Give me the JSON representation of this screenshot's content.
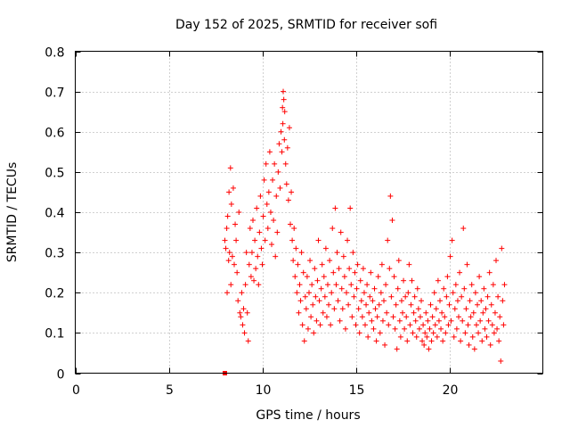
{
  "chart_data": {
    "type": "scatter",
    "title": "Day 152 of 2025, SRMTID for receiver sofi",
    "xlabel": "GPS time / hours",
    "ylabel": "SRMTID / TECUs",
    "xlim": [
      0,
      25
    ],
    "ylim": [
      0,
      0.8
    ],
    "xticks": [
      0,
      5,
      10,
      15,
      20
    ],
    "yticks": [
      0,
      0.1,
      0.2,
      0.3,
      0.4,
      0.5,
      0.6,
      0.7,
      0.8
    ],
    "grid": true,
    "marker_color": "#ff0000",
    "series": [
      {
        "name": "SRMTID",
        "marker": "plus",
        "points": [
          [
            8.0,
            0.33
          ],
          [
            8.05,
            0.31
          ],
          [
            8.1,
            0.36
          ],
          [
            8.12,
            0.2
          ],
          [
            8.15,
            0.39
          ],
          [
            8.2,
            0.28
          ],
          [
            8.22,
            0.45
          ],
          [
            8.25,
            0.3
          ],
          [
            8.3,
            0.51
          ],
          [
            8.32,
            0.22
          ],
          [
            8.35,
            0.42
          ],
          [
            8.4,
            0.29
          ],
          [
            8.45,
            0.46
          ],
          [
            8.5,
            0.27
          ],
          [
            8.55,
            0.37
          ],
          [
            8.6,
            0.33
          ],
          [
            8.65,
            0.25
          ],
          [
            8.7,
            0.18
          ],
          [
            8.75,
            0.4
          ],
          [
            8.8,
            0.15
          ],
          [
            8.85,
            0.14
          ],
          [
            8.9,
            0.2
          ],
          [
            8.95,
            0.12
          ],
          [
            9.0,
            0.16
          ],
          [
            9.05,
            0.1
          ],
          [
            9.1,
            0.22
          ],
          [
            9.15,
            0.3
          ],
          [
            9.2,
            0.15
          ],
          [
            9.25,
            0.08
          ],
          [
            9.3,
            0.27
          ],
          [
            9.35,
            0.36
          ],
          [
            9.4,
            0.24
          ],
          [
            9.45,
            0.3
          ],
          [
            9.5,
            0.38
          ],
          [
            9.55,
            0.23
          ],
          [
            9.6,
            0.33
          ],
          [
            9.65,
            0.26
          ],
          [
            9.7,
            0.41
          ],
          [
            9.75,
            0.29
          ],
          [
            9.8,
            0.22
          ],
          [
            9.85,
            0.35
          ],
          [
            9.9,
            0.44
          ],
          [
            9.95,
            0.31
          ],
          [
            10.0,
            0.27
          ],
          [
            10.05,
            0.39
          ],
          [
            10.1,
            0.48
          ],
          [
            10.15,
            0.33
          ],
          [
            10.2,
            0.52
          ],
          [
            10.25,
            0.42
          ],
          [
            10.3,
            0.36
          ],
          [
            10.35,
            0.45
          ],
          [
            10.4,
            0.55
          ],
          [
            10.45,
            0.4
          ],
          [
            10.5,
            0.32
          ],
          [
            10.55,
            0.48
          ],
          [
            10.6,
            0.38
          ],
          [
            10.65,
            0.52
          ],
          [
            10.7,
            0.29
          ],
          [
            10.75,
            0.44
          ],
          [
            10.8,
            0.35
          ],
          [
            10.85,
            0.5
          ],
          [
            10.9,
            0.57
          ],
          [
            10.95,
            0.46
          ],
          [
            11.0,
            0.6
          ],
          [
            11.05,
            0.55
          ],
          [
            11.08,
            0.66
          ],
          [
            11.1,
            0.62
          ],
          [
            11.12,
            0.7
          ],
          [
            11.15,
            0.68
          ],
          [
            11.18,
            0.58
          ],
          [
            11.2,
            0.65
          ],
          [
            11.25,
            0.52
          ],
          [
            11.3,
            0.47
          ],
          [
            11.35,
            0.56
          ],
          [
            11.4,
            0.43
          ],
          [
            11.45,
            0.61
          ],
          [
            11.5,
            0.37
          ],
          [
            11.55,
            0.45
          ],
          [
            11.6,
            0.33
          ],
          [
            11.65,
            0.28
          ],
          [
            11.7,
            0.36
          ],
          [
            11.75,
            0.24
          ],
          [
            11.8,
            0.31
          ],
          [
            11.85,
            0.2
          ],
          [
            11.9,
            0.27
          ],
          [
            11.95,
            0.15
          ],
          [
            12.0,
            0.22
          ],
          [
            12.05,
            0.18
          ],
          [
            12.1,
            0.3
          ],
          [
            12.15,
            0.12
          ],
          [
            12.2,
            0.25
          ],
          [
            12.25,
            0.08
          ],
          [
            12.3,
            0.19
          ],
          [
            12.35,
            0.16
          ],
          [
            12.4,
            0.24
          ],
          [
            12.45,
            0.11
          ],
          [
            12.5,
            0.2
          ],
          [
            12.55,
            0.28
          ],
          [
            12.6,
            0.14
          ],
          [
            12.65,
            0.22
          ],
          [
            12.7,
            0.17
          ],
          [
            12.75,
            0.1
          ],
          [
            12.8,
            0.26
          ],
          [
            12.85,
            0.19
          ],
          [
            12.9,
            0.13
          ],
          [
            12.95,
            0.23
          ],
          [
            13.0,
            0.33
          ],
          [
            13.05,
            0.18
          ],
          [
            13.1,
            0.12
          ],
          [
            13.15,
            0.21
          ],
          [
            13.2,
            0.27
          ],
          [
            13.25,
            0.15
          ],
          [
            13.3,
            0.24
          ],
          [
            13.35,
            0.19
          ],
          [
            13.4,
            0.31
          ],
          [
            13.45,
            0.14
          ],
          [
            13.5,
            0.22
          ],
          [
            13.55,
            0.17
          ],
          [
            13.6,
            0.28
          ],
          [
            13.65,
            0.12
          ],
          [
            13.7,
            0.2
          ],
          [
            13.75,
            0.36
          ],
          [
            13.8,
            0.25
          ],
          [
            13.85,
            0.16
          ],
          [
            13.9,
            0.41
          ],
          [
            13.95,
            0.22
          ],
          [
            14.0,
            0.3
          ],
          [
            14.05,
            0.18
          ],
          [
            14.1,
            0.26
          ],
          [
            14.15,
            0.13
          ],
          [
            14.2,
            0.35
          ],
          [
            14.25,
            0.21
          ],
          [
            14.3,
            0.16
          ],
          [
            14.35,
            0.29
          ],
          [
            14.4,
            0.24
          ],
          [
            14.45,
            0.11
          ],
          [
            14.5,
            0.2
          ],
          [
            14.55,
            0.33
          ],
          [
            14.6,
            0.17
          ],
          [
            14.65,
            0.26
          ],
          [
            14.7,
            0.41
          ],
          [
            14.75,
            0.22
          ],
          [
            14.8,
            0.14
          ],
          [
            14.85,
            0.3
          ],
          [
            14.9,
            0.19
          ],
          [
            14.95,
            0.25
          ],
          [
            15.0,
            0.12
          ],
          [
            15.05,
            0.21
          ],
          [
            15.1,
            0.27
          ],
          [
            15.15,
            0.16
          ],
          [
            15.2,
            0.1
          ],
          [
            15.25,
            0.23
          ],
          [
            15.3,
            0.18
          ],
          [
            15.35,
            0.14
          ],
          [
            15.4,
            0.26
          ],
          [
            15.45,
            0.2
          ],
          [
            15.5,
            0.12
          ],
          [
            15.55,
            0.17
          ],
          [
            15.6,
            0.22
          ],
          [
            15.65,
            0.09
          ],
          [
            15.7,
            0.15
          ],
          [
            15.75,
            0.19
          ],
          [
            15.8,
            0.25
          ],
          [
            15.85,
            0.13
          ],
          [
            15.9,
            0.18
          ],
          [
            15.95,
            0.11
          ],
          [
            16.0,
            0.21
          ],
          [
            16.05,
            0.16
          ],
          [
            16.1,
            0.08
          ],
          [
            16.15,
            0.14
          ],
          [
            16.2,
            0.24
          ],
          [
            16.25,
            0.17
          ],
          [
            16.3,
            0.1
          ],
          [
            16.35,
            0.2
          ],
          [
            16.4,
            0.27
          ],
          [
            16.45,
            0.13
          ],
          [
            16.5,
            0.18
          ],
          [
            16.55,
            0.07
          ],
          [
            16.6,
            0.22
          ],
          [
            16.65,
            0.15
          ],
          [
            16.7,
            0.33
          ],
          [
            16.75,
            0.12
          ],
          [
            16.8,
            0.26
          ],
          [
            16.85,
            0.44
          ],
          [
            16.9,
            0.19
          ],
          [
            16.95,
            0.38
          ],
          [
            17.0,
            0.14
          ],
          [
            17.05,
            0.24
          ],
          [
            17.1,
            0.11
          ],
          [
            17.15,
            0.17
          ],
          [
            17.2,
            0.06
          ],
          [
            17.25,
            0.21
          ],
          [
            17.3,
            0.28
          ],
          [
            17.35,
            0.13
          ],
          [
            17.4,
            0.09
          ],
          [
            17.45,
            0.18
          ],
          [
            17.5,
            0.15
          ],
          [
            17.55,
            0.23
          ],
          [
            17.6,
            0.11
          ],
          [
            17.65,
            0.19
          ],
          [
            17.7,
            0.14
          ],
          [
            17.75,
            0.08
          ],
          [
            17.8,
            0.2
          ],
          [
            17.85,
            0.27
          ],
          [
            17.9,
            0.12
          ],
          [
            17.95,
            0.17
          ],
          [
            18.0,
            0.23
          ],
          [
            18.05,
            0.1
          ],
          [
            18.1,
            0.15
          ],
          [
            18.15,
            0.19
          ],
          [
            18.2,
            0.13
          ],
          [
            18.25,
            0.09
          ],
          [
            18.3,
            0.21
          ],
          [
            18.35,
            0.16
          ],
          [
            18.4,
            0.11
          ],
          [
            18.45,
            0.14
          ],
          [
            18.5,
            0.18
          ],
          [
            18.55,
            0.08
          ],
          [
            18.6,
            0.12
          ],
          [
            18.65,
            0.07
          ],
          [
            18.7,
            0.1
          ],
          [
            18.75,
            0.15
          ],
          [
            18.8,
            0.09
          ],
          [
            18.85,
            0.13
          ],
          [
            18.9,
            0.06
          ],
          [
            18.95,
            0.11
          ],
          [
            19.0,
            0.17
          ],
          [
            19.05,
            0.08
          ],
          [
            19.1,
            0.14
          ],
          [
            19.15,
            0.1
          ],
          [
            19.2,
            0.2
          ],
          [
            19.25,
            0.12
          ],
          [
            19.3,
            0.16
          ],
          [
            19.35,
            0.09
          ],
          [
            19.4,
            0.23
          ],
          [
            19.45,
            0.13
          ],
          [
            19.5,
            0.18
          ],
          [
            19.55,
            0.11
          ],
          [
            19.6,
            0.15
          ],
          [
            19.65,
            0.08
          ],
          [
            19.7,
            0.21
          ],
          [
            19.75,
            0.14
          ],
          [
            19.8,
            0.1
          ],
          [
            19.85,
            0.19
          ],
          [
            19.9,
            0.24
          ],
          [
            19.95,
            0.12
          ],
          [
            20.0,
            0.17
          ],
          [
            20.05,
            0.29
          ],
          [
            20.1,
            0.13
          ],
          [
            20.15,
            0.33
          ],
          [
            20.2,
            0.2
          ],
          [
            20.25,
            0.09
          ],
          [
            20.3,
            0.16
          ],
          [
            20.35,
            0.22
          ],
          [
            20.4,
            0.11
          ],
          [
            20.45,
            0.18
          ],
          [
            20.5,
            0.14
          ],
          [
            20.55,
            0.25
          ],
          [
            20.6,
            0.08
          ],
          [
            20.65,
            0.19
          ],
          [
            20.7,
            0.13
          ],
          [
            20.75,
            0.36
          ],
          [
            20.8,
            0.21
          ],
          [
            20.85,
            0.1
          ],
          [
            20.9,
            0.16
          ],
          [
            20.95,
            0.27
          ],
          [
            21.0,
            0.12
          ],
          [
            21.05,
            0.07
          ],
          [
            21.1,
            0.18
          ],
          [
            21.15,
            0.14
          ],
          [
            21.2,
            0.22
          ],
          [
            21.25,
            0.09
          ],
          [
            21.3,
            0.15
          ],
          [
            21.35,
            0.06
          ],
          [
            21.4,
            0.2
          ],
          [
            21.45,
            0.12
          ],
          [
            21.5,
            0.17
          ],
          [
            21.55,
            0.1
          ],
          [
            21.6,
            0.24
          ],
          [
            21.65,
            0.13
          ],
          [
            21.7,
            0.18
          ],
          [
            21.75,
            0.08
          ],
          [
            21.8,
            0.15
          ],
          [
            21.85,
            0.21
          ],
          [
            21.9,
            0.11
          ],
          [
            21.95,
            0.16
          ],
          [
            22.0,
            0.09
          ],
          [
            22.05,
            0.19
          ],
          [
            22.1,
            0.13
          ],
          [
            22.15,
            0.25
          ],
          [
            22.2,
            0.07
          ],
          [
            22.25,
            0.17
          ],
          [
            22.3,
            0.12
          ],
          [
            22.35,
            0.22
          ],
          [
            22.4,
            0.1
          ],
          [
            22.45,
            0.15
          ],
          [
            22.5,
            0.28
          ],
          [
            22.55,
            0.11
          ],
          [
            22.6,
            0.19
          ],
          [
            22.65,
            0.08
          ],
          [
            22.7,
            0.14
          ],
          [
            22.75,
            0.03
          ],
          [
            22.8,
            0.31
          ],
          [
            22.85,
            0.18
          ],
          [
            22.9,
            0.12
          ],
          [
            22.95,
            0.22
          ],
          [
            8.0,
            0.0
          ]
        ]
      }
    ]
  }
}
